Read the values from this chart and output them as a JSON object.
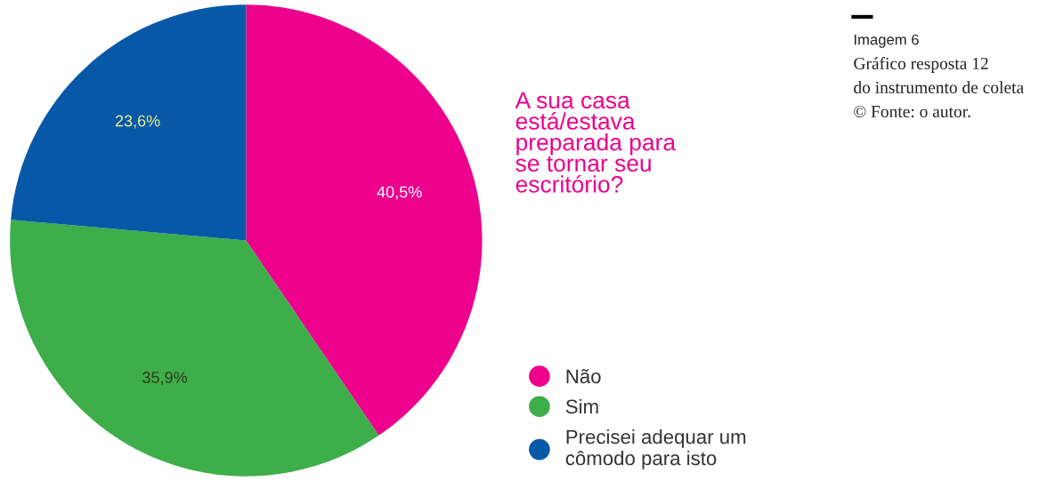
{
  "chart_data": {
    "type": "pie",
    "title": "A sua casa\nestá/estava\npreparada para\nse tornar seu\nescritório?",
    "categories": [
      "Não",
      "Sim",
      "Precisei adequar um\ncômodo para isto"
    ],
    "values": [
      40.5,
      35.9,
      23.6
    ],
    "colors": [
      "#ec008c",
      "#3dae4a",
      "#0759a8"
    ],
    "value_labels": [
      "40,5%",
      "35,9%",
      "23,6%"
    ],
    "legend": "right",
    "annotations": [
      "Imagem 6",
      "Gráfico resposta 12",
      "do instrumento de coleta",
      "© Fonte: o autor."
    ]
  }
}
